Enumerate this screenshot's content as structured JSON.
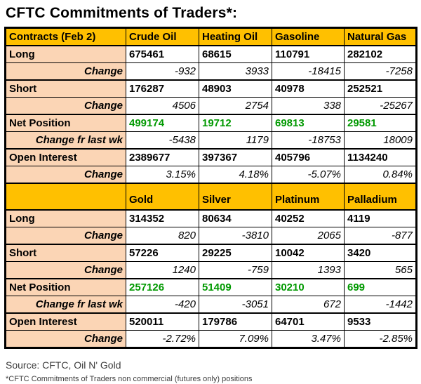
{
  "title": "CFTC Commitments of Traders*:",
  "colors": {
    "header_bg": "#FFC000",
    "label_bg": "#FBD5B5",
    "net_position_green": "#009900",
    "border": "#000000"
  },
  "chart_data": {
    "type": "table",
    "title": "CFTC Commitments of Traders*:",
    "sections": [
      {
        "columns": [
          "Contracts (Feb 2)",
          "Crude Oil",
          "Heating Oil",
          "Gasoline",
          "Natural Gas"
        ],
        "rows": [
          {
            "label": "Long",
            "type": "main",
            "values": [
              "675461",
              "68615",
              "110791",
              "282102"
            ]
          },
          {
            "label": "Change",
            "type": "change",
            "values": [
              "-932",
              "3933",
              "-18415",
              "-7258"
            ]
          },
          {
            "label": "Short",
            "type": "main",
            "values": [
              "176287",
              "48903",
              "40978",
              "252521"
            ]
          },
          {
            "label": "Change",
            "type": "change",
            "values": [
              "4506",
              "2754",
              "338",
              "-25267"
            ]
          },
          {
            "label": "Net Position",
            "type": "net",
            "values": [
              "499174",
              "19712",
              "69813",
              "29581"
            ]
          },
          {
            "label": "Change fr last wk",
            "type": "change",
            "values": [
              "-5438",
              "1179",
              "-18753",
              "18009"
            ]
          },
          {
            "label": "Open Interest",
            "type": "main",
            "values": [
              "2389677",
              "397367",
              "405796",
              "1134240"
            ]
          },
          {
            "label": "Change",
            "type": "change",
            "values": [
              "3.15%",
              "4.18%",
              "-5.07%",
              "0.84%"
            ]
          }
        ]
      },
      {
        "columns": [
          "",
          "Gold",
          "Silver",
          "Platinum",
          "Palladium"
        ],
        "rows": [
          {
            "label": "Long",
            "type": "main",
            "values": [
              "314352",
              "80634",
              "40252",
              "4119"
            ]
          },
          {
            "label": "Change",
            "type": "change",
            "values": [
              "820",
              "-3810",
              "2065",
              "-877"
            ]
          },
          {
            "label": "Short",
            "type": "main",
            "values": [
              "57226",
              "29225",
              "10042",
              "3420"
            ]
          },
          {
            "label": "Change",
            "type": "change",
            "values": [
              "1240",
              "-759",
              "1393",
              "565"
            ]
          },
          {
            "label": "Net Position",
            "type": "net",
            "values": [
              "257126",
              "51409",
              "30210",
              "699"
            ]
          },
          {
            "label": "Change fr last wk",
            "type": "change",
            "values": [
              "-420",
              "-3051",
              "672",
              "-1442"
            ]
          },
          {
            "label": "Open Interest",
            "type": "main",
            "values": [
              "520011",
              "179786",
              "64701",
              "9533"
            ]
          },
          {
            "label": "Change",
            "type": "change",
            "values": [
              "-2.72%",
              "7.09%",
              "3.47%",
              "-2.85%"
            ]
          }
        ]
      }
    ]
  },
  "footer": {
    "source": "Source: CFTC, Oil N' Gold",
    "note": "*CFTC Commitments of Traders non commercial (futures only) positions"
  }
}
